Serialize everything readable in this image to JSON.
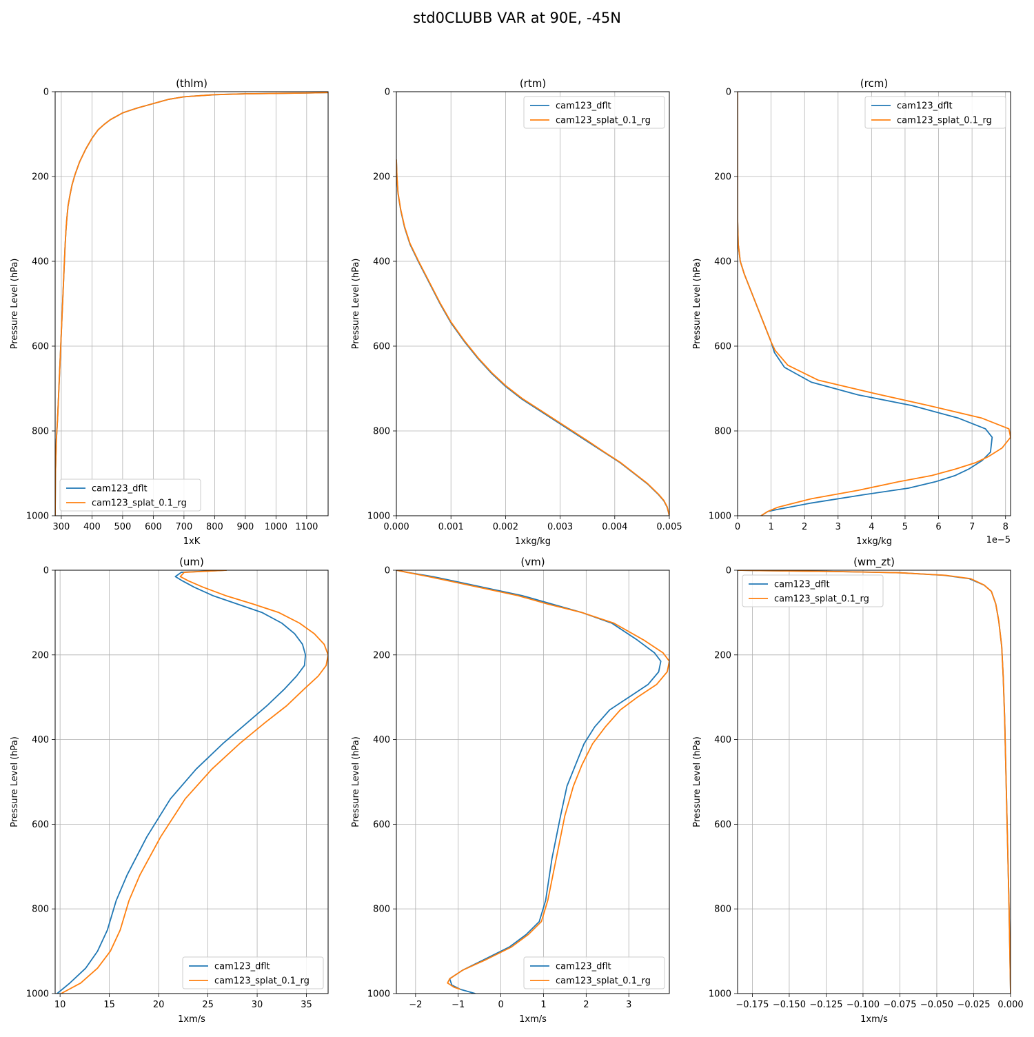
{
  "figure": {
    "title": "std0CLUBB VAR at 90E, -45N"
  },
  "colors": {
    "cam123_dflt": "#1f77b4",
    "cam123_splat_0.1_rg": "#ff7f0e",
    "grid": "#b0b0b0"
  },
  "chart_data": [
    {
      "type": "line",
      "title": "(thlm)",
      "xlabel": "1xK",
      "ylabel": "Pressure Level (hPa)",
      "xlim": [
        280,
        1170
      ],
      "ylim": [
        1000,
        0
      ],
      "xticks": [
        300,
        400,
        500,
        600,
        700,
        800,
        900,
        1000,
        1100
      ],
      "xticklabels": [
        "300",
        "400",
        "500",
        "600",
        "700",
        "800",
        "900",
        "1000",
        "1100"
      ],
      "yticks": [
        0,
        200,
        400,
        600,
        800,
        1000
      ],
      "yticklabels": [
        "0",
        "200",
        "400",
        "600",
        "800",
        "1000"
      ],
      "offset_label": "",
      "grid": true,
      "legend": "lower left",
      "series": [
        {
          "name": "cam123_dflt",
          "color": "#1f77b4",
          "x": [
            1170,
            1100,
            1000,
            900,
            800,
            700,
            650,
            620,
            580,
            550,
            520,
            500,
            480,
            460,
            440,
            420,
            400,
            380,
            360,
            345,
            335,
            328,
            322,
            318,
            315,
            312,
            309,
            306,
            303,
            300,
            297,
            294,
            291,
            288,
            284,
            281,
            280
          ],
          "y": [
            2,
            3,
            4,
            5,
            7,
            12,
            18,
            24,
            32,
            38,
            45,
            50,
            58,
            66,
            77,
            90,
            110,
            135,
            165,
            195,
            220,
            245,
            270,
            300,
            330,
            370,
            420,
            470,
            520,
            570,
            620,
            670,
            720,
            770,
            820,
            900,
            1000
          ]
        },
        {
          "name": "cam123_splat_0.1_rg",
          "color": "#ff7f0e",
          "x": [
            1170,
            1100,
            1000,
            900,
            800,
            700,
            650,
            620,
            580,
            550,
            520,
            500,
            480,
            460,
            440,
            420,
            400,
            380,
            360,
            345,
            335,
            328,
            322,
            318,
            315,
            312,
            309,
            306,
            303,
            300,
            297,
            294,
            291,
            288,
            284,
            281,
            280
          ],
          "y": [
            2,
            3,
            4,
            5,
            7,
            12,
            18,
            24,
            32,
            38,
            45,
            50,
            58,
            66,
            77,
            90,
            110,
            135,
            165,
            195,
            220,
            245,
            270,
            300,
            330,
            370,
            420,
            470,
            520,
            570,
            620,
            670,
            720,
            770,
            820,
            900,
            1000
          ]
        }
      ]
    },
    {
      "type": "line",
      "title": "(rtm)",
      "xlabel": "1xkg/kg",
      "ylabel": "Pressure Level (hPa)",
      "xlim": [
        0,
        0.005
      ],
      "ylim": [
        1000,
        0
      ],
      "xticks": [
        0,
        0.001,
        0.002,
        0.003,
        0.004,
        0.005
      ],
      "xticklabels": [
        "0.000",
        "0.001",
        "0.002",
        "0.003",
        "0.004",
        "0.005"
      ],
      "yticks": [
        0,
        200,
        400,
        600,
        800,
        1000
      ],
      "yticklabels": [
        "0",
        "200",
        "400",
        "600",
        "800",
        "1000"
      ],
      "offset_label": "",
      "grid": true,
      "legend": "upper right",
      "series": [
        {
          "name": "cam123_dflt",
          "color": "#1f77b4",
          "x": [
            0.0,
            1e-05,
            3e-05,
            8e-05,
            0.00015,
            0.00025,
            0.0004,
            0.0006,
            0.0008,
            0.001,
            0.00125,
            0.0015,
            0.00175,
            0.002,
            0.0023,
            0.0026,
            0.0029,
            0.0032,
            0.0035,
            0.0038,
            0.0041,
            0.0044,
            0.0046,
            0.0048,
            0.0049,
            0.00496,
            0.005
          ],
          "y": [
            160,
            200,
            240,
            280,
            320,
            360,
            400,
            450,
            500,
            545,
            590,
            630,
            665,
            695,
            725,
            750,
            775,
            800,
            825,
            850,
            875,
            905,
            925,
            950,
            965,
            980,
            1000
          ]
        },
        {
          "name": "cam123_splat_0.1_rg",
          "color": "#ff7f0e",
          "x": [
            0.0,
            1e-05,
            3e-05,
            8e-05,
            0.00015,
            0.00025,
            0.0004,
            0.0006,
            0.0008,
            0.001,
            0.00125,
            0.0015,
            0.00175,
            0.002,
            0.0023,
            0.0026,
            0.0029,
            0.0032,
            0.0035,
            0.0038,
            0.0041,
            0.0044,
            0.0046,
            0.0048,
            0.0049,
            0.00496,
            0.005
          ],
          "y": [
            160,
            198,
            238,
            278,
            318,
            358,
            398,
            448,
            498,
            543,
            588,
            628,
            663,
            693,
            723,
            748,
            773,
            798,
            823,
            849,
            874,
            904,
            924,
            949,
            964,
            979,
            1000
          ]
        }
      ]
    },
    {
      "type": "line",
      "title": "(rcm)",
      "xlabel": "1xkg/kg",
      "ylabel": "Pressure Level (hPa)",
      "xlim": [
        0,
        8.15e-05
      ],
      "ylim": [
        1000,
        0
      ],
      "xticks": [
        0,
        1e-05,
        2e-05,
        3e-05,
        4e-05,
        5e-05,
        6e-05,
        7e-05,
        8e-05
      ],
      "xticklabels": [
        "0",
        "1",
        "2",
        "3",
        "4",
        "5",
        "6",
        "7",
        "8"
      ],
      "yticks": [
        0,
        200,
        400,
        600,
        800,
        1000
      ],
      "yticklabels": [
        "0",
        "200",
        "400",
        "600",
        "800",
        "1000"
      ],
      "offset_label": "1e−5",
      "grid": true,
      "legend": "upper right",
      "series": [
        {
          "name": "cam123_dflt",
          "color": "#1f77b4",
          "x": [
            0.0,
            0.0,
            2e-07,
            8e-07,
            2e-06,
            4e-06,
            6e-06,
            8e-06,
            1e-05,
            1.1e-05,
            1.4e-05,
            2.2e-05,
            3.6e-05,
            5.2e-05,
            6.6e-05,
            7.4e-05,
            7.6e-05,
            7.55e-05,
            7.3e-05,
            6.9e-05,
            6.5e-05,
            5.9e-05,
            5.1e-05,
            3.8e-05,
            2.2e-05,
            1.2e-05,
            9e-06,
            7e-06
          ],
          "y": [
            0,
            300,
            360,
            400,
            430,
            470,
            510,
            550,
            590,
            615,
            650,
            685,
            715,
            740,
            770,
            795,
            815,
            850,
            870,
            890,
            905,
            920,
            935,
            950,
            970,
            985,
            990,
            1000
          ]
        },
        {
          "name": "cam123_splat_0.1_rg",
          "color": "#ff7f0e",
          "x": [
            0.0,
            0.0,
            2e-07,
            8e-07,
            2e-06,
            4e-06,
            6e-06,
            8e-06,
            1e-05,
            1.12e-05,
            1.5e-05,
            2.4e-05,
            4e-05,
            5.7e-05,
            7.3e-05,
            8.1e-05,
            8.15e-05,
            7.9e-05,
            7.5e-05,
            7.1e-05,
            6.5e-05,
            5.8e-05,
            4.8e-05,
            3.6e-05,
            2.2e-05,
            1.2e-05,
            9e-06,
            7e-06
          ],
          "y": [
            0,
            300,
            360,
            400,
            430,
            470,
            510,
            550,
            590,
            610,
            645,
            680,
            710,
            740,
            770,
            795,
            815,
            840,
            860,
            875,
            890,
            905,
            920,
            940,
            960,
            980,
            990,
            1000
          ]
        }
      ]
    },
    {
      "type": "line",
      "title": "(um)",
      "xlabel": "1xm/s",
      "ylabel": "Pressure Level (hPa)",
      "xlim": [
        9.5,
        37.2
      ],
      "ylim": [
        1000,
        0
      ],
      "xticks": [
        10,
        15,
        20,
        25,
        30,
        35
      ],
      "xticklabels": [
        "10",
        "15",
        "20",
        "25",
        "30",
        "35"
      ],
      "yticks": [
        0,
        200,
        400,
        600,
        800,
        1000
      ],
      "yticklabels": [
        "0",
        "200",
        "400",
        "600",
        "800",
        "1000"
      ],
      "offset_label": "",
      "grid": true,
      "legend": "lower right",
      "series": [
        {
          "name": "cam123_dflt",
          "color": "#1f77b4",
          "x": [
            26.9,
            22.3,
            21.7,
            22.4,
            23.6,
            25.5,
            28.0,
            30.5,
            32.5,
            33.8,
            34.6,
            34.9,
            34.8,
            34.0,
            32.8,
            31.0,
            29.0,
            26.5,
            23.8,
            21.2,
            18.8,
            16.8,
            15.7,
            14.8,
            13.8,
            12.6,
            11.0,
            9.7
          ],
          "y": [
            0,
            5,
            15,
            25,
            40,
            60,
            80,
            100,
            125,
            150,
            175,
            200,
            225,
            250,
            280,
            320,
            360,
            410,
            470,
            540,
            630,
            720,
            780,
            850,
            900,
            940,
            975,
            1000
          ]
        },
        {
          "name": "cam123_splat_0.1_rg",
          "color": "#ff7f0e",
          "x": [
            26.9,
            22.6,
            22.2,
            23.0,
            24.5,
            26.8,
            29.6,
            32.2,
            34.3,
            35.8,
            36.8,
            37.2,
            37.0,
            36.2,
            34.8,
            33.0,
            30.8,
            28.2,
            25.4,
            22.7,
            20.2,
            18.1,
            17.0,
            16.1,
            15.1,
            13.8,
            12.1,
            10.1
          ],
          "y": [
            0,
            5,
            15,
            25,
            40,
            60,
            80,
            100,
            125,
            150,
            175,
            200,
            225,
            250,
            280,
            320,
            360,
            410,
            470,
            540,
            630,
            720,
            780,
            850,
            900,
            940,
            975,
            1000
          ]
        }
      ]
    },
    {
      "type": "line",
      "title": "(vm)",
      "xlabel": "1xm/s",
      "ylabel": "Pressure Level (hPa)",
      "xlim": [
        -2.45,
        3.95
      ],
      "ylim": [
        1000,
        0
      ],
      "xticks": [
        -2,
        -1,
        0,
        1,
        2,
        3
      ],
      "xticklabels": [
        "−2",
        "−1",
        "0",
        "1",
        "2",
        "3"
      ],
      "yticks": [
        0,
        200,
        400,
        600,
        800,
        1000
      ],
      "yticklabels": [
        "0",
        "200",
        "400",
        "600",
        "800",
        "1000"
      ],
      "offset_label": "",
      "grid": true,
      "legend": "lower right",
      "series": [
        {
          "name": "cam123_dflt",
          "color": "#1f77b4",
          "x": [
            -2.45,
            -2.2,
            -1.6,
            -0.9,
            -0.2,
            0.5,
            1.2,
            1.9,
            2.6,
            3.2,
            3.6,
            3.75,
            3.7,
            3.45,
            3.0,
            2.55,
            2.2,
            1.95,
            1.75,
            1.55,
            1.4,
            1.2,
            1.05,
            0.9,
            0.6,
            0.2,
            -0.4,
            -0.9,
            -1.2,
            -1.15,
            -0.95,
            -0.6
          ],
          "y": [
            0,
            5,
            15,
            30,
            45,
            60,
            80,
            100,
            125,
            165,
            195,
            215,
            240,
            270,
            300,
            330,
            370,
            410,
            460,
            510,
            580,
            680,
            780,
            830,
            860,
            890,
            920,
            945,
            965,
            980,
            990,
            1000
          ]
        },
        {
          "name": "cam123_splat_0.1_rg",
          "color": "#ff7f0e",
          "x": [
            -2.45,
            -2.2,
            -1.7,
            -1.0,
            -0.3,
            0.4,
            1.1,
            1.9,
            2.65,
            3.35,
            3.8,
            3.95,
            3.9,
            3.65,
            3.2,
            2.8,
            2.45,
            2.15,
            1.9,
            1.7,
            1.5,
            1.3,
            1.1,
            0.95,
            0.65,
            0.25,
            -0.35,
            -0.9,
            -1.2,
            -1.25,
            -1.1,
            -0.95
          ],
          "y": [
            0,
            5,
            15,
            30,
            45,
            60,
            80,
            100,
            125,
            165,
            195,
            215,
            240,
            270,
            300,
            330,
            370,
            410,
            460,
            510,
            580,
            680,
            780,
            830,
            860,
            890,
            920,
            945,
            965,
            975,
            985,
            990
          ]
        }
      ]
    },
    {
      "type": "line",
      "title": "(wm_zt)",
      "xlabel": "1xm/s",
      "ylabel": "Pressure Level (hPa)",
      "xlim": [
        -0.185,
        0.0
      ],
      "ylim": [
        1000,
        0
      ],
      "xticks": [
        -0.175,
        -0.15,
        -0.125,
        -0.1,
        -0.075,
        -0.05,
        -0.025,
        0.0
      ],
      "xticklabels": [
        "−0.175",
        "−0.150",
        "−0.125",
        "−0.100",
        "−0.075",
        "−0.050",
        "−0.025",
        "0.000"
      ],
      "yticks": [
        0,
        200,
        400,
        600,
        800,
        1000
      ],
      "yticklabels": [
        "0",
        "200",
        "400",
        "600",
        "800",
        "1000"
      ],
      "offset_label": "",
      "grid": true,
      "legend": "upper left",
      "series": [
        {
          "name": "cam123_dflt",
          "color": "#1f77b4",
          "x": [
            -0.185,
            -0.17,
            -0.12,
            -0.075,
            -0.045,
            -0.028,
            -0.018,
            -0.013,
            -0.01,
            -0.008,
            -0.006,
            -0.005,
            -0.004,
            -0.003,
            -0.002,
            -0.001,
            0.0
          ],
          "y": [
            0,
            1,
            3,
            6,
            12,
            20,
            35,
            50,
            80,
            120,
            180,
            250,
            350,
            500,
            650,
            800,
            1000
          ]
        },
        {
          "name": "cam123_splat_0.1_rg",
          "color": "#ff7f0e",
          "x": [
            -0.185,
            -0.17,
            -0.12,
            -0.075,
            -0.044,
            -0.027,
            -0.018,
            -0.013,
            -0.01,
            -0.008,
            -0.006,
            -0.005,
            -0.004,
            -0.003,
            -0.002,
            -0.001,
            0.0
          ],
          "y": [
            0,
            1,
            3,
            6,
            12,
            20,
            35,
            50,
            80,
            120,
            180,
            250,
            350,
            500,
            650,
            800,
            1000
          ]
        }
      ]
    }
  ]
}
